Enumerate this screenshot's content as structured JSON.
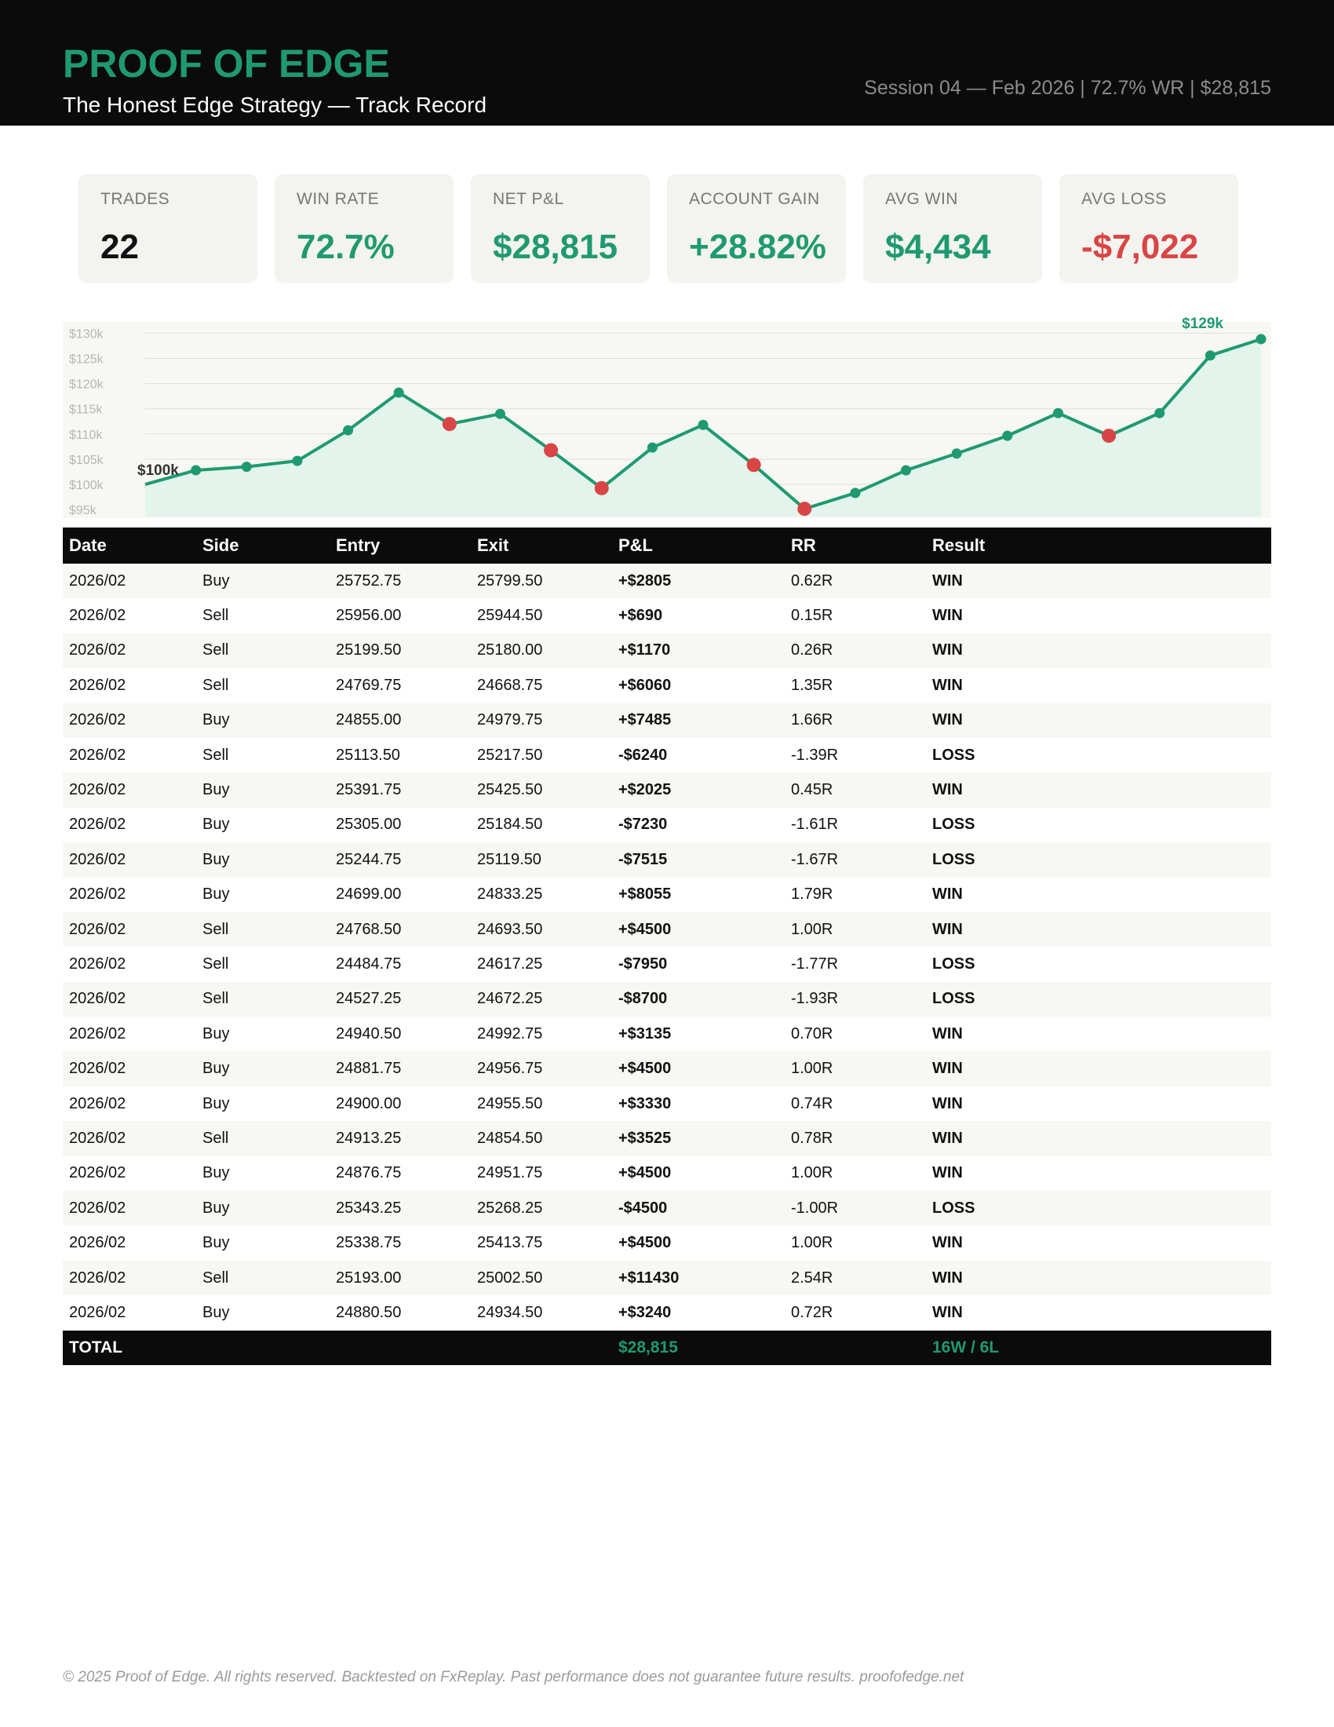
{
  "header": {
    "title": "PROOF OF EDGE",
    "subtitle": "The Honest Edge Strategy — Track Record",
    "session_info": "Session 04 — Feb 2026  |  72.7% WR  |  $28,815"
  },
  "stats": [
    {
      "label": "TRADES",
      "value": "22",
      "color": "#111111"
    },
    {
      "label": "WIN RATE",
      "value": "72.7%",
      "color": "#1f9a70"
    },
    {
      "label": "NET P&L",
      "value": "$28,815",
      "color": "#1f9a70"
    },
    {
      "label": "ACCOUNT GAIN",
      "value": "+28.82%",
      "color": "#1f9a70"
    },
    {
      "label": "AVG WIN",
      "value": "$4,434",
      "color": "#1f9a70"
    },
    {
      "label": "AVG LOSS",
      "value": "-$7,022",
      "color": "#d94545"
    }
  ],
  "chart_data": {
    "type": "line",
    "y_ticks": [
      "$95k",
      "$100k",
      "$105k",
      "$110k",
      "$115k",
      "$120k",
      "$125k",
      "$130k"
    ],
    "y_tick_values": [
      95000,
      100000,
      105000,
      110000,
      115000,
      120000,
      125000,
      130000
    ],
    "ylim": [
      93000,
      131000
    ],
    "start_label": "$100k",
    "end_label": "$129k",
    "points": [
      100000,
      102805,
      103495,
      104665,
      110725,
      118210,
      111970,
      113995,
      106765,
      99250,
      107305,
      111805,
      103855,
      95155,
      98290,
      102790,
      106120,
      109645,
      114145,
      109645,
      114145,
      125575,
      128815
    ],
    "point_results": [
      "start",
      "win",
      "win",
      "win",
      "win",
      "win",
      "loss",
      "win",
      "loss",
      "loss",
      "win",
      "win",
      "loss",
      "loss",
      "win",
      "win",
      "win",
      "win",
      "win",
      "loss",
      "win",
      "win",
      "win"
    ],
    "grid": true,
    "colors": {
      "line": "#1f9a70",
      "fill": "#e2f4ec",
      "win_point": "#1f9a70",
      "loss_point": "#d94545",
      "background": "#f7f7f3"
    }
  },
  "table": {
    "columns": [
      "Date",
      "Side",
      "Entry",
      "Exit",
      "P&L",
      "RR",
      "Result"
    ],
    "rows": [
      {
        "date": "2026/02",
        "side": "Buy",
        "entry": "25752.75",
        "exit": "25799.50",
        "pnl": "+$2805",
        "rr": "0.62R",
        "result": "WIN"
      },
      {
        "date": "2026/02",
        "side": "Sell",
        "entry": "25956.00",
        "exit": "25944.50",
        "pnl": "+$690",
        "rr": "0.15R",
        "result": "WIN"
      },
      {
        "date": "2026/02",
        "side": "Sell",
        "entry": "25199.50",
        "exit": "25180.00",
        "pnl": "+$1170",
        "rr": "0.26R",
        "result": "WIN"
      },
      {
        "date": "2026/02",
        "side": "Sell",
        "entry": "24769.75",
        "exit": "24668.75",
        "pnl": "+$6060",
        "rr": "1.35R",
        "result": "WIN"
      },
      {
        "date": "2026/02",
        "side": "Buy",
        "entry": "24855.00",
        "exit": "24979.75",
        "pnl": "+$7485",
        "rr": "1.66R",
        "result": "WIN"
      },
      {
        "date": "2026/02",
        "side": "Sell",
        "entry": "25113.50",
        "exit": "25217.50",
        "pnl": "-$6240",
        "rr": "-1.39R",
        "result": "LOSS"
      },
      {
        "date": "2026/02",
        "side": "Buy",
        "entry": "25391.75",
        "exit": "25425.50",
        "pnl": "+$2025",
        "rr": "0.45R",
        "result": "WIN"
      },
      {
        "date": "2026/02",
        "side": "Buy",
        "entry": "25305.00",
        "exit": "25184.50",
        "pnl": "-$7230",
        "rr": "-1.61R",
        "result": "LOSS"
      },
      {
        "date": "2026/02",
        "side": "Buy",
        "entry": "25244.75",
        "exit": "25119.50",
        "pnl": "-$7515",
        "rr": "-1.67R",
        "result": "LOSS"
      },
      {
        "date": "2026/02",
        "side": "Buy",
        "entry": "24699.00",
        "exit": "24833.25",
        "pnl": "+$8055",
        "rr": "1.79R",
        "result": "WIN"
      },
      {
        "date": "2026/02",
        "side": "Sell",
        "entry": "24768.50",
        "exit": "24693.50",
        "pnl": "+$4500",
        "rr": "1.00R",
        "result": "WIN"
      },
      {
        "date": "2026/02",
        "side": "Sell",
        "entry": "24484.75",
        "exit": "24617.25",
        "pnl": "-$7950",
        "rr": "-1.77R",
        "result": "LOSS"
      },
      {
        "date": "2026/02",
        "side": "Sell",
        "entry": "24527.25",
        "exit": "24672.25",
        "pnl": "-$8700",
        "rr": "-1.93R",
        "result": "LOSS"
      },
      {
        "date": "2026/02",
        "side": "Buy",
        "entry": "24940.50",
        "exit": "24992.75",
        "pnl": "+$3135",
        "rr": "0.70R",
        "result": "WIN"
      },
      {
        "date": "2026/02",
        "side": "Buy",
        "entry": "24881.75",
        "exit": "24956.75",
        "pnl": "+$4500",
        "rr": "1.00R",
        "result": "WIN"
      },
      {
        "date": "2026/02",
        "side": "Buy",
        "entry": "24900.00",
        "exit": "24955.50",
        "pnl": "+$3330",
        "rr": "0.74R",
        "result": "WIN"
      },
      {
        "date": "2026/02",
        "side": "Sell",
        "entry": "24913.25",
        "exit": "24854.50",
        "pnl": "+$3525",
        "rr": "0.78R",
        "result": "WIN"
      },
      {
        "date": "2026/02",
        "side": "Buy",
        "entry": "24876.75",
        "exit": "24951.75",
        "pnl": "+$4500",
        "rr": "1.00R",
        "result": "WIN"
      },
      {
        "date": "2026/02",
        "side": "Buy",
        "entry": "25343.25",
        "exit": "25268.25",
        "pnl": "-$4500",
        "rr": "-1.00R",
        "result": "LOSS"
      },
      {
        "date": "2026/02",
        "side": "Buy",
        "entry": "25338.75",
        "exit": "25413.75",
        "pnl": "+$4500",
        "rr": "1.00R",
        "result": "WIN"
      },
      {
        "date": "2026/02",
        "side": "Sell",
        "entry": "25193.00",
        "exit": "25002.50",
        "pnl": "+$11430",
        "rr": "2.54R",
        "result": "WIN"
      },
      {
        "date": "2026/02",
        "side": "Buy",
        "entry": "24880.50",
        "exit": "24934.50",
        "pnl": "+$3240",
        "rr": "0.72R",
        "result": "WIN"
      }
    ],
    "total": {
      "label": "TOTAL",
      "pnl": "$28,815",
      "result": "16W / 6L"
    }
  },
  "footer": {
    "note": "© 2025 Proof of Edge. All rights reserved. Backtested on FxReplay. Past performance does not guarantee future results. proofofedge.net"
  }
}
